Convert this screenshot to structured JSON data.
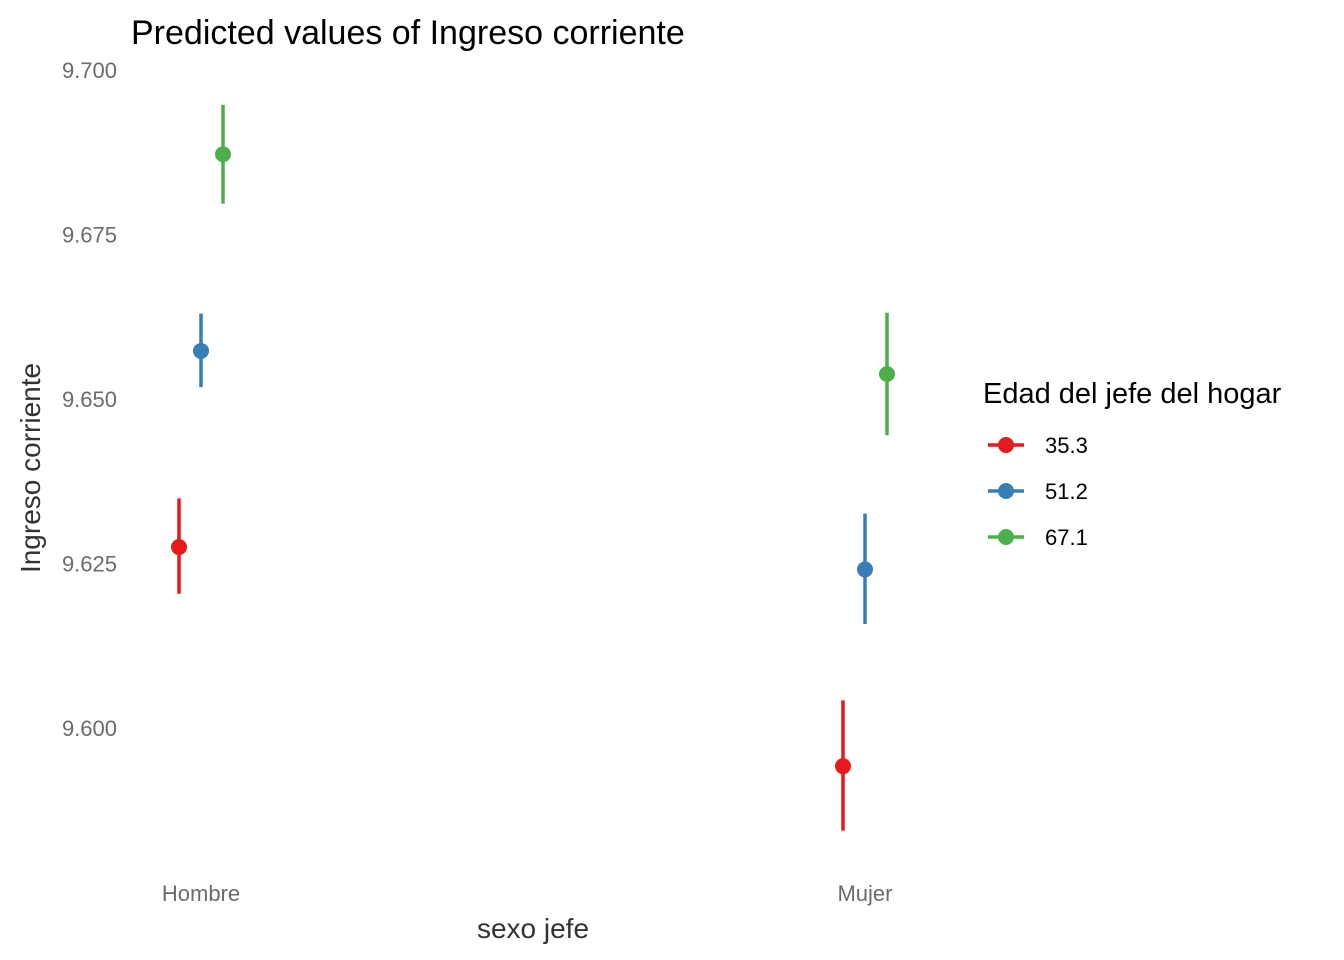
{
  "chart_data": {
    "type": "scatter",
    "title": "Predicted values of Ingreso corriente",
    "xlabel": "sexo jefe",
    "ylabel": "Ingreso corriente",
    "categories": [
      "Hombre",
      "Mujer"
    ],
    "y_ticks": [
      "9.600",
      "9.625",
      "9.650",
      "9.675",
      "9.700"
    ],
    "ylim": [
      9.5825,
      9.7
    ],
    "grid": false,
    "legend": {
      "title": "Edad del jefe del hogar",
      "position": "right"
    },
    "series": [
      {
        "name": "35.3",
        "color": "#E41A1C",
        "values": [
          9.6275,
          9.5942
        ],
        "ci_low": [
          9.6204,
          9.5844
        ],
        "ci_high": [
          9.6349,
          9.6042
        ]
      },
      {
        "name": "51.2",
        "color": "#377EB8",
        "values": [
          9.6573,
          9.6241
        ],
        "ci_low": [
          9.6518,
          9.6158
        ],
        "ci_high": [
          9.663,
          9.6326
        ]
      },
      {
        "name": "67.1",
        "color": "#4DAF4A",
        "values": [
          9.6872,
          9.6538
        ],
        "ci_low": [
          9.6797,
          9.6445
        ],
        "ci_high": [
          9.6947,
          9.6631
        ]
      }
    ]
  }
}
